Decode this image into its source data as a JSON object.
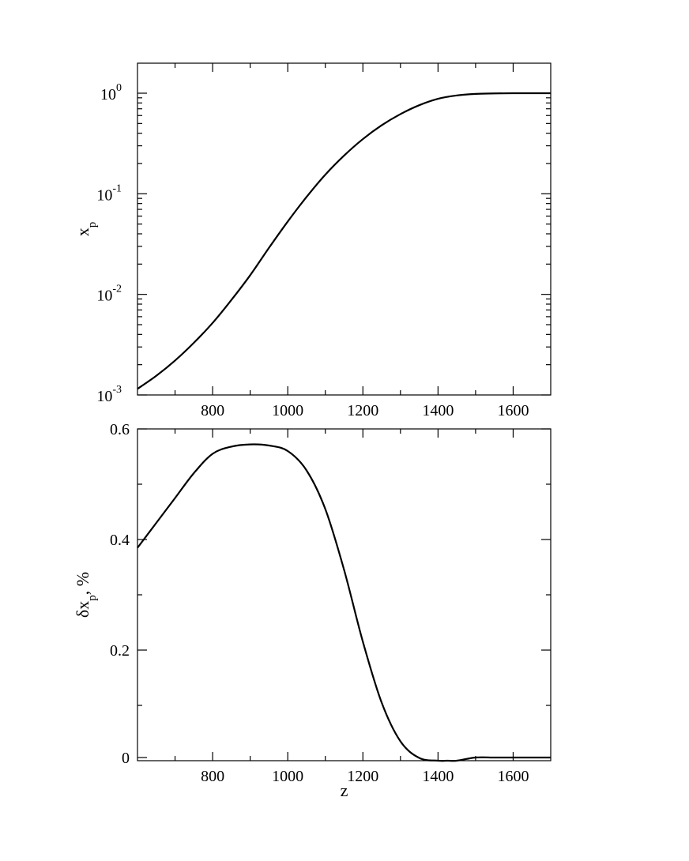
{
  "chart_data": [
    {
      "type": "line",
      "title": "",
      "xlabel": "",
      "ylabel": {
        "main": "x",
        "sub": "p",
        "suffix": ""
      },
      "xlim": [
        600,
        1700
      ],
      "ylim": [
        0.001,
        1
      ],
      "yscale": "log",
      "grid": false,
      "x_ticks": [
        800,
        1000,
        1200,
        1400,
        1600
      ],
      "x_tick_labels": [
        "800",
        "1000",
        "1200",
        "1400",
        "1600"
      ],
      "y_ticks": [
        0.001,
        0.01,
        0.1,
        1
      ],
      "y_tick_labels": [
        {
          "base": "10",
          "exp": "-3"
        },
        {
          "base": "10",
          "exp": "-2"
        },
        {
          "base": "10",
          "exp": "-1"
        },
        {
          "base": "10",
          "exp": "0"
        }
      ],
      "series": [
        {
          "x": [
            600,
            650,
            700,
            750,
            800,
            850,
            900,
            950,
            1000,
            1050,
            1100,
            1150,
            1200,
            1250,
            1300,
            1350,
            1400,
            1450,
            1500,
            1550,
            1600,
            1650,
            1700
          ],
          "y": [
            0.00115,
            0.00155,
            0.0022,
            0.0033,
            0.0052,
            0.0088,
            0.0155,
            0.029,
            0.053,
            0.093,
            0.155,
            0.24,
            0.35,
            0.48,
            0.62,
            0.76,
            0.88,
            0.95,
            0.985,
            0.995,
            1.0,
            1.0,
            1.0
          ]
        }
      ]
    },
    {
      "type": "line",
      "title": "",
      "xlabel": "z",
      "ylabel": {
        "main": "δx",
        "sub": "p",
        "suffix": ", %"
      },
      "xlim": [
        600,
        1700
      ],
      "ylim": [
        0,
        0.6
      ],
      "yscale": "linear",
      "grid": false,
      "x_ticks": [
        800,
        1000,
        1200,
        1400,
        1600
      ],
      "x_tick_labels": [
        "800",
        "1000",
        "1200",
        "1400",
        "1600"
      ],
      "y_ticks": [
        0,
        0.2,
        0.4,
        0.6
      ],
      "y_tick_labels": [
        "0",
        "0.2",
        "0.4",
        "0.6"
      ],
      "series": [
        {
          "x": [
            600,
            650,
            700,
            750,
            800,
            850,
            900,
            950,
            1000,
            1050,
            1100,
            1150,
            1200,
            1250,
            1300,
            1350,
            1400,
            1425,
            1450,
            1500,
            1550,
            1600,
            1650,
            1700
          ],
          "y": [
            0.385,
            0.43,
            0.475,
            0.52,
            0.555,
            0.568,
            0.572,
            0.57,
            0.56,
            0.525,
            0.455,
            0.345,
            0.215,
            0.105,
            0.035,
            0.005,
            -0.002,
            -0.003,
            -0.002,
            0.0,
            0.0,
            0.0,
            0.0,
            0.0
          ]
        }
      ]
    }
  ]
}
